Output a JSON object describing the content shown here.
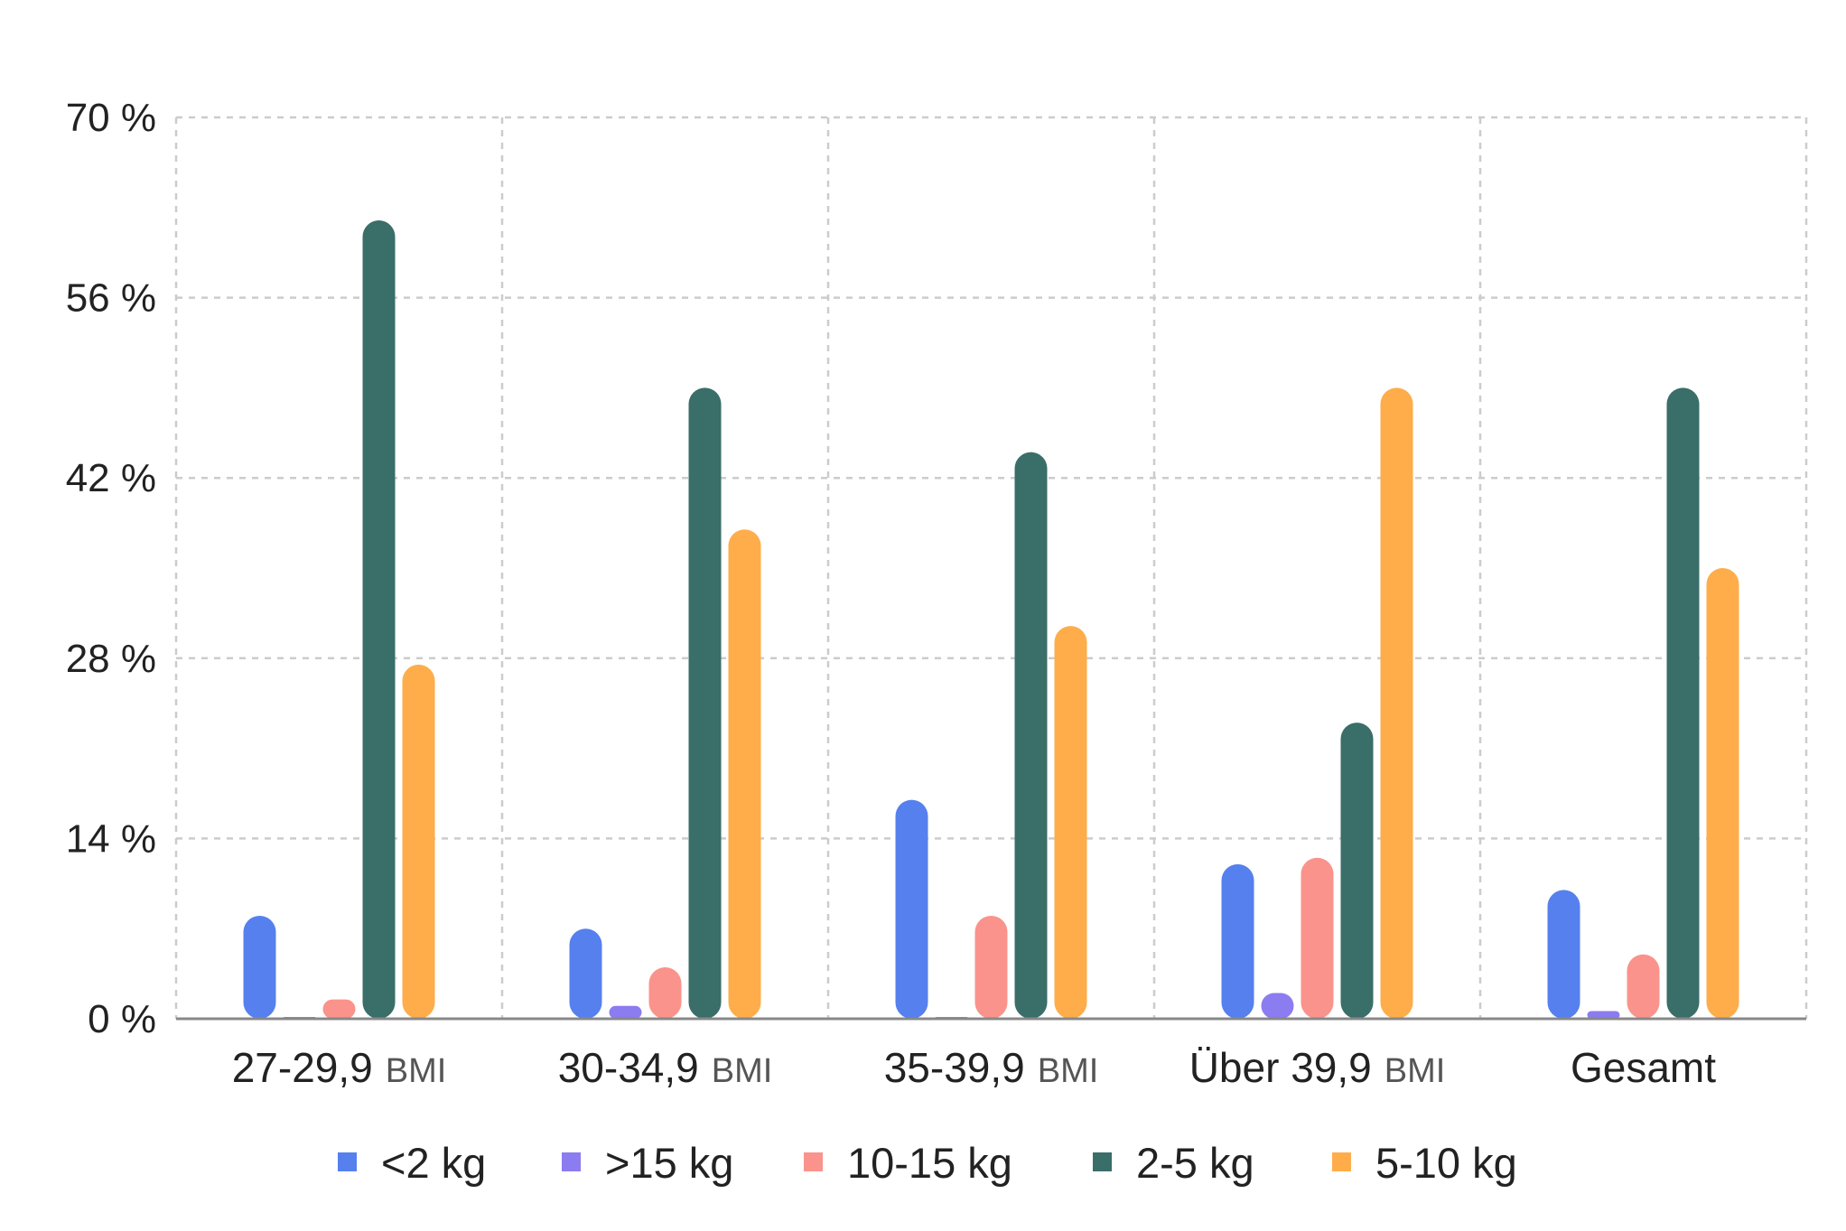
{
  "chart_data": {
    "type": "bar",
    "title": "",
    "xlabel": "",
    "ylabel": "",
    "ylim": [
      0,
      70
    ],
    "yticks": [
      0,
      14,
      28,
      42,
      56,
      70
    ],
    "ytick_suffix": " %",
    "grid": true,
    "legend_position": "bottom",
    "categories": [
      {
        "main": "27-29,9",
        "sub": "BMI"
      },
      {
        "main": "30-34,9",
        "sub": "BMI"
      },
      {
        "main": "35-39,9",
        "sub": "BMI"
      },
      {
        "main": "Über 39,9",
        "sub": "BMI"
      },
      {
        "main": "Gesamt",
        "sub": ""
      }
    ],
    "series": [
      {
        "name": "<2 kg",
        "color": "#5580EE",
        "values": [
          8,
          7,
          17,
          12,
          10
        ]
      },
      {
        "name": ">15 kg",
        "color": "#8B7CF0",
        "values": [
          0,
          1,
          0,
          2,
          0.6
        ]
      },
      {
        "name": "10-15 kg",
        "color": "#FA938B",
        "values": [
          1.5,
          4,
          8,
          12.5,
          5
        ]
      },
      {
        "name": "2-5 kg",
        "color": "#3A6E68",
        "values": [
          62,
          49,
          44,
          23,
          49
        ]
      },
      {
        "name": "5-10 kg",
        "color": "#FEAD4A",
        "values": [
          27.5,
          38,
          30.5,
          49,
          35
        ]
      }
    ]
  }
}
